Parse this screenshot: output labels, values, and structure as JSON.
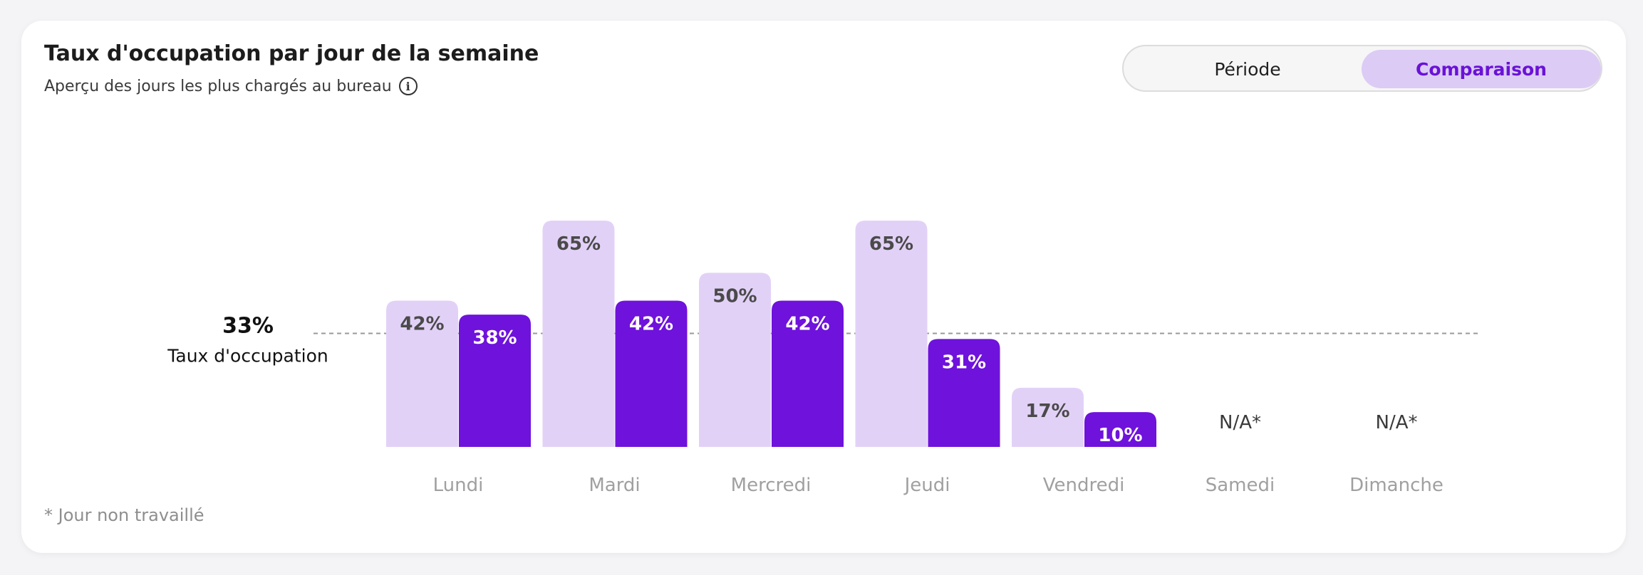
{
  "card": {
    "title": "Taux d'occupation par jour de la semaine",
    "subtitle": "Aperçu des jours les plus chargés au bureau",
    "info_icon": "info-icon"
  },
  "toggle": {
    "options": [
      "Période",
      "Comparaison"
    ],
    "selected": "Comparaison"
  },
  "footnote": "* Jour non travaillé",
  "colors": {
    "series_light": "#e2d1f7",
    "series_dark": "#6f12dc",
    "accent": "#6a12d6",
    "reference_line": "#9a9a9a"
  },
  "chart_data": {
    "type": "bar",
    "categories": [
      "Lundi",
      "Mardi",
      "Mercredi",
      "Jeudi",
      "Vendredi",
      "Samedi",
      "Dimanche"
    ],
    "series": [
      {
        "values": [
          42,
          65,
          50,
          65,
          17,
          null,
          null
        ],
        "labels": [
          "42%",
          "65%",
          "50%",
          "65%",
          "17%",
          null,
          null
        ]
      },
      {
        "values": [
          38,
          42,
          42,
          31,
          10,
          null,
          null
        ],
        "labels": [
          "38%",
          "42%",
          "42%",
          "31%",
          "10%",
          null,
          null
        ]
      }
    ],
    "na_labels": [
      null,
      null,
      null,
      null,
      null,
      "N/A*",
      "N/A*"
    ],
    "reference": {
      "value": 33,
      "label_value": "33%",
      "label_text": "Taux d'occupation"
    },
    "ylim": [
      0,
      100
    ],
    "grid": false
  }
}
